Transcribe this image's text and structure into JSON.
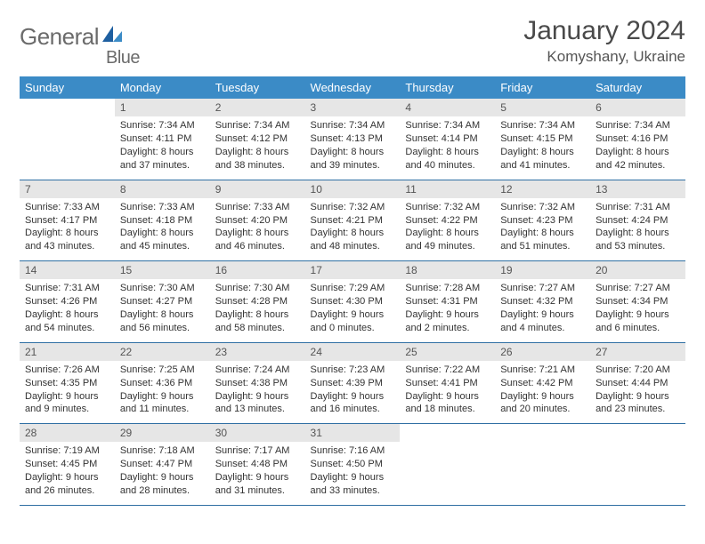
{
  "brand": {
    "name1": "General",
    "name2": "Blue",
    "accent": "#3b8bc6",
    "text_color": "#6b6b6b"
  },
  "title": {
    "month": "January 2024",
    "location": "Komyshany, Ukraine"
  },
  "colors": {
    "header_bg": "#3b8bc6",
    "header_text": "#ffffff",
    "daynum_bg": "#e6e6e6",
    "row_divider": "#2f6fa3",
    "body_text": "#333333",
    "page_bg": "#ffffff"
  },
  "weekdays": [
    "Sunday",
    "Monday",
    "Tuesday",
    "Wednesday",
    "Thursday",
    "Friday",
    "Saturday"
  ],
  "layout": {
    "first_weekday_index": 1,
    "days_in_month": 31
  },
  "days": {
    "1": {
      "sunrise": "7:34 AM",
      "sunset": "4:11 PM",
      "daylight": "8 hours and 37 minutes."
    },
    "2": {
      "sunrise": "7:34 AM",
      "sunset": "4:12 PM",
      "daylight": "8 hours and 38 minutes."
    },
    "3": {
      "sunrise": "7:34 AM",
      "sunset": "4:13 PM",
      "daylight": "8 hours and 39 minutes."
    },
    "4": {
      "sunrise": "7:34 AM",
      "sunset": "4:14 PM",
      "daylight": "8 hours and 40 minutes."
    },
    "5": {
      "sunrise": "7:34 AM",
      "sunset": "4:15 PM",
      "daylight": "8 hours and 41 minutes."
    },
    "6": {
      "sunrise": "7:34 AM",
      "sunset": "4:16 PM",
      "daylight": "8 hours and 42 minutes."
    },
    "7": {
      "sunrise": "7:33 AM",
      "sunset": "4:17 PM",
      "daylight": "8 hours and 43 minutes."
    },
    "8": {
      "sunrise": "7:33 AM",
      "sunset": "4:18 PM",
      "daylight": "8 hours and 45 minutes."
    },
    "9": {
      "sunrise": "7:33 AM",
      "sunset": "4:20 PM",
      "daylight": "8 hours and 46 minutes."
    },
    "10": {
      "sunrise": "7:32 AM",
      "sunset": "4:21 PM",
      "daylight": "8 hours and 48 minutes."
    },
    "11": {
      "sunrise": "7:32 AM",
      "sunset": "4:22 PM",
      "daylight": "8 hours and 49 minutes."
    },
    "12": {
      "sunrise": "7:32 AM",
      "sunset": "4:23 PM",
      "daylight": "8 hours and 51 minutes."
    },
    "13": {
      "sunrise": "7:31 AM",
      "sunset": "4:24 PM",
      "daylight": "8 hours and 53 minutes."
    },
    "14": {
      "sunrise": "7:31 AM",
      "sunset": "4:26 PM",
      "daylight": "8 hours and 54 minutes."
    },
    "15": {
      "sunrise": "7:30 AM",
      "sunset": "4:27 PM",
      "daylight": "8 hours and 56 minutes."
    },
    "16": {
      "sunrise": "7:30 AM",
      "sunset": "4:28 PM",
      "daylight": "8 hours and 58 minutes."
    },
    "17": {
      "sunrise": "7:29 AM",
      "sunset": "4:30 PM",
      "daylight": "9 hours and 0 minutes."
    },
    "18": {
      "sunrise": "7:28 AM",
      "sunset": "4:31 PM",
      "daylight": "9 hours and 2 minutes."
    },
    "19": {
      "sunrise": "7:27 AM",
      "sunset": "4:32 PM",
      "daylight": "9 hours and 4 minutes."
    },
    "20": {
      "sunrise": "7:27 AM",
      "sunset": "4:34 PM",
      "daylight": "9 hours and 6 minutes."
    },
    "21": {
      "sunrise": "7:26 AM",
      "sunset": "4:35 PM",
      "daylight": "9 hours and 9 minutes."
    },
    "22": {
      "sunrise": "7:25 AM",
      "sunset": "4:36 PM",
      "daylight": "9 hours and 11 minutes."
    },
    "23": {
      "sunrise": "7:24 AM",
      "sunset": "4:38 PM",
      "daylight": "9 hours and 13 minutes."
    },
    "24": {
      "sunrise": "7:23 AM",
      "sunset": "4:39 PM",
      "daylight": "9 hours and 16 minutes."
    },
    "25": {
      "sunrise": "7:22 AM",
      "sunset": "4:41 PM",
      "daylight": "9 hours and 18 minutes."
    },
    "26": {
      "sunrise": "7:21 AM",
      "sunset": "4:42 PM",
      "daylight": "9 hours and 20 minutes."
    },
    "27": {
      "sunrise": "7:20 AM",
      "sunset": "4:44 PM",
      "daylight": "9 hours and 23 minutes."
    },
    "28": {
      "sunrise": "7:19 AM",
      "sunset": "4:45 PM",
      "daylight": "9 hours and 26 minutes."
    },
    "29": {
      "sunrise": "7:18 AM",
      "sunset": "4:47 PM",
      "daylight": "9 hours and 28 minutes."
    },
    "30": {
      "sunrise": "7:17 AM",
      "sunset": "4:48 PM",
      "daylight": "9 hours and 31 minutes."
    },
    "31": {
      "sunrise": "7:16 AM",
      "sunset": "4:50 PM",
      "daylight": "9 hours and 33 minutes."
    }
  },
  "labels": {
    "sunrise": "Sunrise:",
    "sunset": "Sunset:",
    "daylight": "Daylight:"
  }
}
